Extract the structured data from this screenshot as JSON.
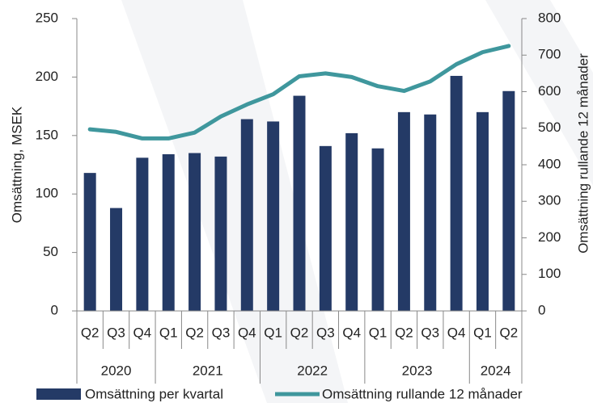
{
  "chart_data": {
    "type": "bar-line",
    "categories": [
      "Q2",
      "Q3",
      "Q4",
      "Q1",
      "Q2",
      "Q3",
      "Q4",
      "Q1",
      "Q2",
      "Q3",
      "Q4",
      "Q1",
      "Q2",
      "Q3",
      "Q4",
      "Q1",
      "Q2"
    ],
    "years": [
      "2020",
      "2021",
      "2022",
      "2023",
      "2024"
    ],
    "series": [
      {
        "name": "Omsättning per kvartal",
        "type": "bar",
        "color": "#243a66",
        "values": [
          118,
          88,
          131,
          134,
          135,
          132,
          164,
          162,
          184,
          141,
          152,
          139,
          170,
          168,
          201,
          170,
          188
        ]
      },
      {
        "name": "Omsättning rullande 12 månader",
        "type": "line",
        "axis": "y2",
        "color": "#3f979d",
        "values": [
          497,
          490,
          472,
          472,
          488,
          532,
          565,
          593,
          642,
          650,
          640,
          615,
          602,
          628,
          675,
          708,
          725
        ]
      }
    ],
    "ylabel": "Omsättning, MSEK",
    "y2label": "Omsättning rullande 12 månader",
    "ylim": [
      0,
      250
    ],
    "yticks": [
      0,
      50,
      100,
      150,
      200,
      250
    ],
    "y2lim": [
      0,
      800
    ],
    "y2ticks": [
      0,
      100,
      200,
      300,
      400,
      500,
      600,
      700,
      800
    ],
    "legend": "bottom"
  }
}
